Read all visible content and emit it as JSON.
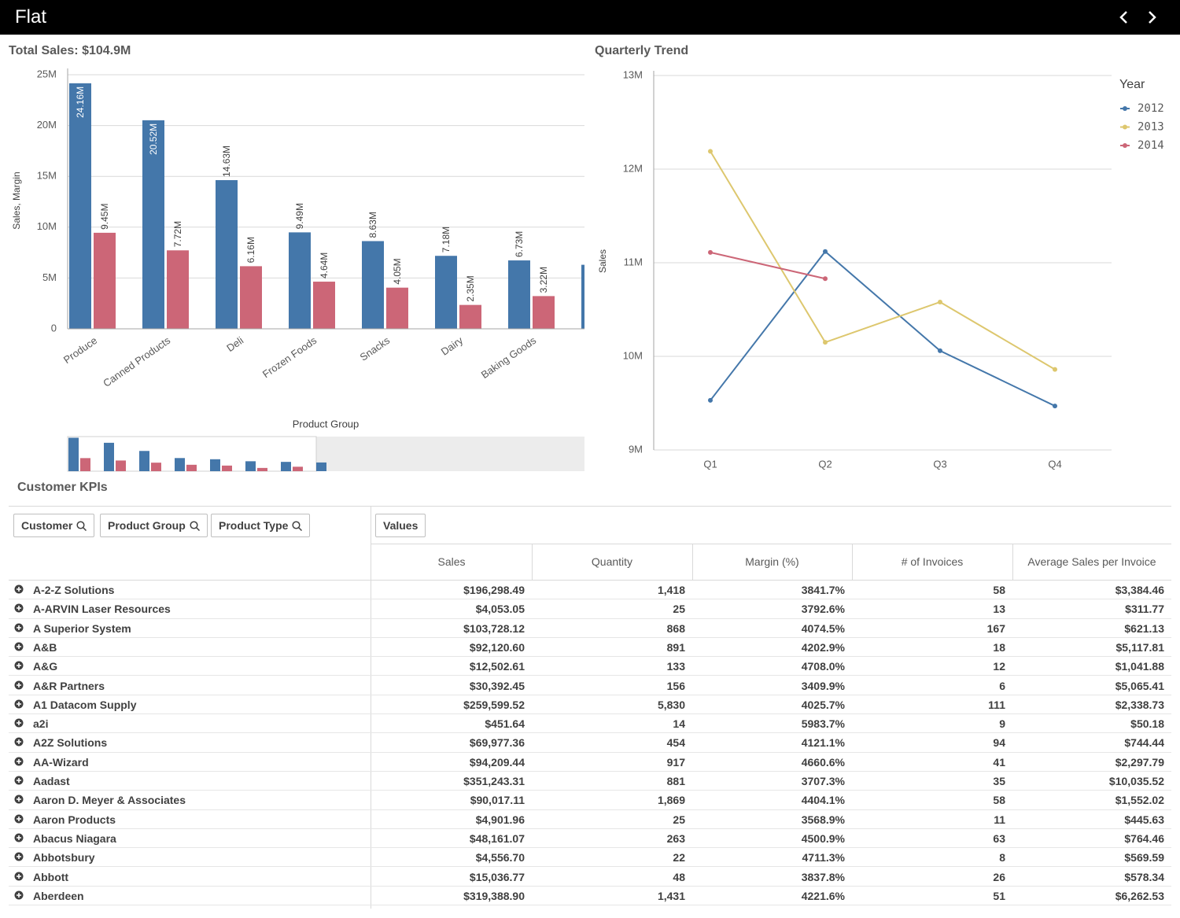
{
  "header": {
    "title": "Flat"
  },
  "chart_data": [
    {
      "type": "bar",
      "title": "Total Sales: $104.9M",
      "x_label": "Product Group",
      "y_label": "Sales, Margin",
      "categories": [
        "Produce",
        "Canned Products",
        "Deli",
        "Frozen Foods",
        "Snacks",
        "Dairy",
        "Baking Goods",
        null
      ],
      "series": [
        {
          "color": "#4477aa",
          "values": [
            24.16,
            20.52,
            14.63,
            9.49,
            8.63,
            7.18,
            6.73,
            6.3
          ],
          "value_labels": [
            "24.16M",
            "20.52M",
            "14.63M",
            "9.49M",
            "8.63M",
            "7.18M",
            "6.73M",
            null
          ]
        },
        {
          "color": "#cc6677",
          "values": [
            9.45,
            7.72,
            6.16,
            4.64,
            4.05,
            2.35,
            3.22,
            null
          ],
          "value_labels": [
            "9.45M",
            "7.72M",
            "6.16M",
            "4.64M",
            "4.05M",
            "2.35M",
            "3.22M",
            null
          ]
        }
      ],
      "ylim": [
        0,
        25
      ],
      "yticks": [
        0,
        {
          "value": 5,
          "label": "5M"
        },
        {
          "value": 10,
          "label": "10M"
        },
        {
          "value": 15,
          "label": "15M"
        },
        {
          "value": 20,
          "label": "20M"
        },
        {
          "value": 25,
          "label": "25M"
        }
      ],
      "grid": true
    },
    {
      "type": "line",
      "title": "Quarterly Trend",
      "y_label": "Sales",
      "legend_title": "Year",
      "legend": "top-right",
      "categories": [
        "Q1",
        "Q2",
        "Q3",
        "Q4"
      ],
      "series": [
        {
          "name": "2012",
          "color": "#4477aa",
          "values": [
            9.53,
            11.12,
            10.06,
            9.47
          ]
        },
        {
          "name": "2013",
          "color": "#ddc76e",
          "values": [
            12.19,
            10.15,
            10.58,
            9.86
          ]
        },
        {
          "name": "2014",
          "color": "#cc6677",
          "values": [
            11.11,
            10.83,
            null,
            null
          ]
        }
      ],
      "ylim": [
        9,
        13
      ],
      "yticks": [
        {
          "value": 9,
          "label": "9M"
        },
        {
          "value": 10,
          "label": "10M"
        },
        {
          "value": 11,
          "label": "11M"
        },
        {
          "value": 12,
          "label": "12M"
        },
        {
          "value": 13,
          "label": "13M"
        }
      ],
      "grid": true
    }
  ],
  "table": {
    "title": "Customer KPIs",
    "filters": [
      "Customer",
      "Product Group",
      "Product Type"
    ],
    "values_button": "Values",
    "columns": [
      "Sales",
      "Quantity",
      "Margin (%)",
      "# of Invoices",
      "Average Sales per Invoice"
    ],
    "rows": [
      [
        "A-2-Z Solutions",
        "$196,298.49",
        "1,418",
        "3841.7%",
        "58",
        "$3,384.46"
      ],
      [
        "A-ARVIN Laser Resources",
        "$4,053.05",
        "25",
        "3792.6%",
        "13",
        "$311.77"
      ],
      [
        "A Superior System",
        "$103,728.12",
        "868",
        "4074.5%",
        "167",
        "$621.13"
      ],
      [
        "A&B",
        "$92,120.60",
        "891",
        "4202.9%",
        "18",
        "$5,117.81"
      ],
      [
        "A&G",
        "$12,502.61",
        "133",
        "4708.0%",
        "12",
        "$1,041.88"
      ],
      [
        "A&R Partners",
        "$30,392.45",
        "156",
        "3409.9%",
        "6",
        "$5,065.41"
      ],
      [
        "A1 Datacom Supply",
        "$259,599.52",
        "5,830",
        "4025.7%",
        "111",
        "$2,338.73"
      ],
      [
        "a2i",
        "$451.64",
        "14",
        "5983.7%",
        "9",
        "$50.18"
      ],
      [
        "A2Z Solutions",
        "$69,977.36",
        "454",
        "4121.1%",
        "94",
        "$744.44"
      ],
      [
        "AA-Wizard",
        "$94,209.44",
        "917",
        "4660.6%",
        "41",
        "$2,297.79"
      ],
      [
        "Aadast",
        "$351,243.31",
        "881",
        "3707.3%",
        "35",
        "$10,035.52"
      ],
      [
        "Aaron D. Meyer & Associates",
        "$90,017.11",
        "1,869",
        "4404.1%",
        "58",
        "$1,552.02"
      ],
      [
        "Aaron Products",
        "$4,901.96",
        "25",
        "3568.9%",
        "11",
        "$445.63"
      ],
      [
        "Abacus Niagara",
        "$48,161.07",
        "263",
        "4500.9%",
        "63",
        "$764.46"
      ],
      [
        "Abbotsbury",
        "$4,556.70",
        "22",
        "4711.3%",
        "8",
        "$569.59"
      ],
      [
        "Abbott",
        "$15,036.77",
        "48",
        "3837.8%",
        "26",
        "$578.34"
      ],
      [
        "Aberdeen",
        "$319,388.90",
        "1,431",
        "4221.6%",
        "51",
        "$6,262.53"
      ]
    ]
  }
}
